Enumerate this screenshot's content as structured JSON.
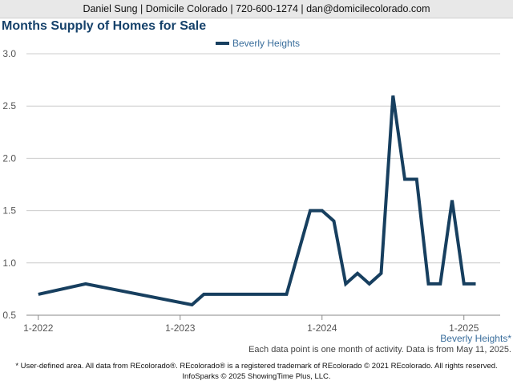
{
  "header": {
    "contact": "Daniel Sung | Domicile Colorado | 720-600-1274 | dan@domicilecolorado.com"
  },
  "chart_data": {
    "type": "line",
    "title": "Months Supply of Homes for Sale",
    "ylim": [
      0.5,
      3.0
    ],
    "y_ticks": [
      "0.5",
      "1.0",
      "1.5",
      "2.0",
      "2.5",
      "3.0"
    ],
    "x_ticks": [
      "1-2022",
      "1-2023",
      "1-2024",
      "1-2025"
    ],
    "grid": true,
    "legend_position": "top-center",
    "x_axis_note": "Beverly Heights*",
    "series": [
      {
        "name": "Beverly Heights",
        "color": "#173f5f",
        "points": [
          {
            "x": "2022-01",
            "y": 0.7
          },
          {
            "x": "2022-05",
            "y": 0.8
          },
          {
            "x": "2023-02",
            "y": 0.6
          },
          {
            "x": "2023-03",
            "y": 0.7
          },
          {
            "x": "2023-04",
            "y": 0.7
          },
          {
            "x": "2023-05",
            "y": 0.7
          },
          {
            "x": "2023-06",
            "y": 0.7
          },
          {
            "x": "2023-07",
            "y": 0.7
          },
          {
            "x": "2023-08",
            "y": 0.7
          },
          {
            "x": "2023-09",
            "y": 0.7
          },
          {
            "x": "2023-10",
            "y": 0.7
          },
          {
            "x": "2023-12",
            "y": 1.5
          },
          {
            "x": "2024-01",
            "y": 1.5
          },
          {
            "x": "2024-02",
            "y": 1.4
          },
          {
            "x": "2024-03",
            "y": 0.8
          },
          {
            "x": "2024-04",
            "y": 0.9
          },
          {
            "x": "2024-05",
            "y": 0.8
          },
          {
            "x": "2024-06",
            "y": 0.9
          },
          {
            "x": "2024-07",
            "y": 2.6
          },
          {
            "x": "2024-08",
            "y": 1.8
          },
          {
            "x": "2024-09",
            "y": 1.8
          },
          {
            "x": "2024-10",
            "y": 0.8
          },
          {
            "x": "2024-11",
            "y": 0.8
          },
          {
            "x": "2024-12",
            "y": 1.6
          },
          {
            "x": "2025-01",
            "y": 0.8
          },
          {
            "x": "2025-02",
            "y": 0.8
          }
        ]
      }
    ]
  },
  "footnote": "Each data point is one month of activity. Data is from May 11, 2025.",
  "disclaimer": {
    "line1": "* User-defined area. All data from REcolorado®. REcolorado® is a registered trademark of REcolorado © 2021 REcolorado. All rights reserved.",
    "line2": "InfoSparks © 2025 ShowingTime Plus, LLC."
  }
}
